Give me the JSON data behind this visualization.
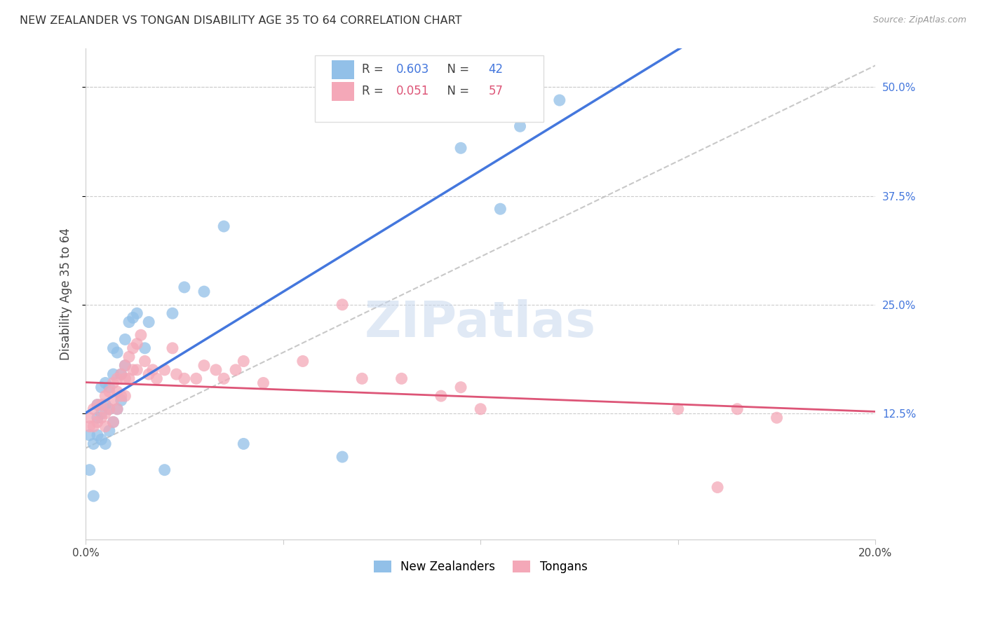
{
  "title": "NEW ZEALANDER VS TONGAN DISABILITY AGE 35 TO 64 CORRELATION CHART",
  "source": "Source: ZipAtlas.com",
  "ylabel": "Disability Age 35 to 64",
  "xlim": [
    0.0,
    0.2
  ],
  "ylim": [
    -0.02,
    0.545
  ],
  "ytick_labels": [
    "12.5%",
    "25.0%",
    "37.5%",
    "50.0%"
  ],
  "ytick_vals": [
    0.125,
    0.25,
    0.375,
    0.5
  ],
  "nz_R": 0.603,
  "nz_N": 42,
  "tonga_R": 0.051,
  "tonga_N": 57,
  "nz_color": "#92C0E8",
  "tonga_color": "#F4A8B8",
  "nz_line_color": "#4477DD",
  "tonga_line_color": "#DD5577",
  "ref_line_color": "#BBBBBB",
  "background_color": "#FFFFFF",
  "nz_x": [
    0.001,
    0.001,
    0.002,
    0.002,
    0.003,
    0.003,
    0.003,
    0.004,
    0.004,
    0.004,
    0.005,
    0.005,
    0.005,
    0.006,
    0.006,
    0.006,
    0.007,
    0.007,
    0.007,
    0.008,
    0.008,
    0.009,
    0.009,
    0.01,
    0.01,
    0.011,
    0.012,
    0.013,
    0.015,
    0.016,
    0.02,
    0.022,
    0.025,
    0.03,
    0.035,
    0.04,
    0.065,
    0.095,
    0.1,
    0.105,
    0.11,
    0.12
  ],
  "nz_y": [
    0.1,
    0.06,
    0.09,
    0.03,
    0.12,
    0.135,
    0.1,
    0.095,
    0.125,
    0.155,
    0.09,
    0.135,
    0.16,
    0.105,
    0.13,
    0.155,
    0.115,
    0.17,
    0.2,
    0.13,
    0.195,
    0.14,
    0.17,
    0.18,
    0.21,
    0.23,
    0.235,
    0.24,
    0.2,
    0.23,
    0.06,
    0.24,
    0.27,
    0.265,
    0.34,
    0.09,
    0.075,
    0.43,
    0.47,
    0.36,
    0.455,
    0.485
  ],
  "tonga_x": [
    0.001,
    0.001,
    0.002,
    0.002,
    0.003,
    0.003,
    0.004,
    0.004,
    0.005,
    0.005,
    0.005,
    0.006,
    0.006,
    0.007,
    0.007,
    0.007,
    0.008,
    0.008,
    0.008,
    0.009,
    0.009,
    0.01,
    0.01,
    0.01,
    0.011,
    0.011,
    0.012,
    0.012,
    0.013,
    0.013,
    0.014,
    0.015,
    0.016,
    0.017,
    0.018,
    0.02,
    0.022,
    0.023,
    0.025,
    0.028,
    0.03,
    0.033,
    0.035,
    0.038,
    0.04,
    0.045,
    0.055,
    0.065,
    0.07,
    0.08,
    0.09,
    0.095,
    0.1,
    0.15,
    0.16,
    0.165,
    0.175
  ],
  "tonga_y": [
    0.12,
    0.11,
    0.13,
    0.11,
    0.115,
    0.135,
    0.12,
    0.135,
    0.125,
    0.11,
    0.145,
    0.13,
    0.15,
    0.115,
    0.14,
    0.16,
    0.13,
    0.15,
    0.165,
    0.145,
    0.17,
    0.145,
    0.165,
    0.18,
    0.165,
    0.19,
    0.175,
    0.2,
    0.175,
    0.205,
    0.215,
    0.185,
    0.17,
    0.175,
    0.165,
    0.175,
    0.2,
    0.17,
    0.165,
    0.165,
    0.18,
    0.175,
    0.165,
    0.175,
    0.185,
    0.16,
    0.185,
    0.25,
    0.165,
    0.165,
    0.145,
    0.155,
    0.13,
    0.13,
    0.04,
    0.13,
    0.12
  ]
}
